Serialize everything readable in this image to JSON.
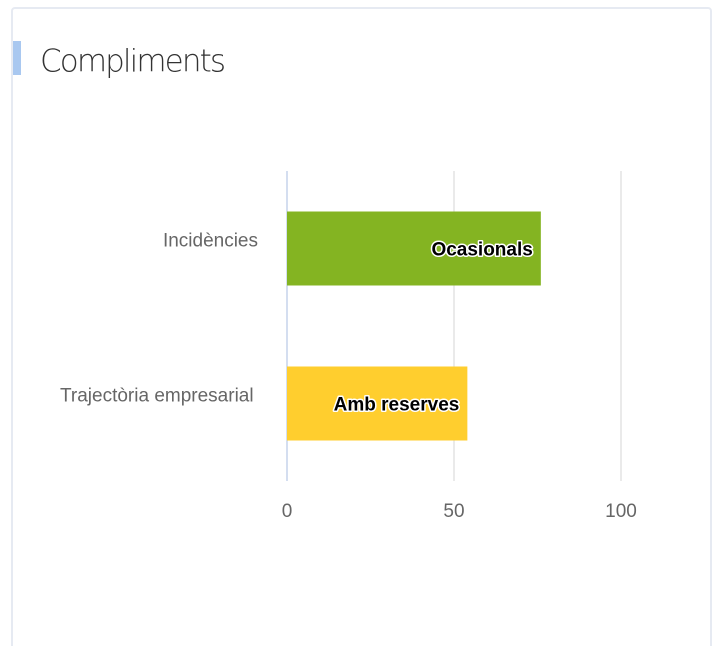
{
  "chart_data": {
    "type": "hbar",
    "title": "Compliments",
    "categories": [
      "Incidències",
      "Trajectòria empresarial"
    ],
    "values": [
      76,
      54
    ],
    "bar_labels": [
      "Ocasionals",
      "Amb reserves"
    ],
    "colors": [
      "#84b422",
      "#ffce2e"
    ],
    "xlim": [
      0,
      100
    ],
    "xticks": [
      0,
      50,
      100
    ],
    "grid": true
  }
}
